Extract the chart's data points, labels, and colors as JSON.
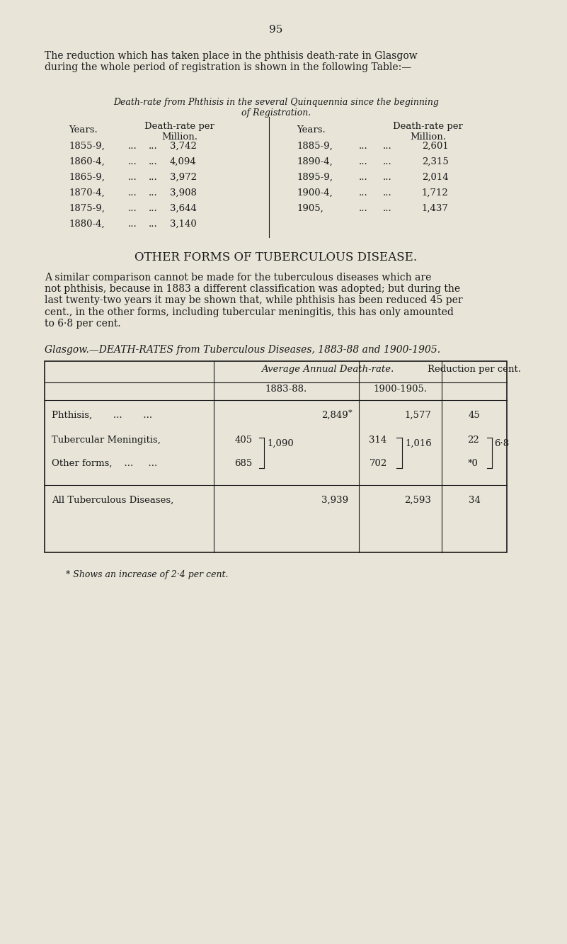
{
  "page_number": "95",
  "bg_color": "#e8e4d8",
  "text_color": "#1a1a1a",
  "intro_text": "The reduction which has taken place in the phthisis death-rate in Glasgow\nduring the whole period of registration is shown in the following Table:—",
  "table1_title_line1": "Death-rate from Phthisis in the several Quinquennia since the beginning",
  "table1_title_line2": "of Registration.",
  "table1_col_header_left": [
    "Years.",
    "Death-rate per\nMillion."
  ],
  "table1_col_header_right": [
    "Years.",
    "Death-rate per\nMillion."
  ],
  "table1_left": [
    [
      "1855-9,",
      "...",
      "...",
      "3,742"
    ],
    [
      "1860-4,",
      "...",
      "...",
      "4,094"
    ],
    [
      "1865-9,",
      "...",
      "...",
      "3,972"
    ],
    [
      "1870-4,",
      "...",
      "...",
      "3,908"
    ],
    [
      "1875-9,",
      "...",
      "...",
      "3,644"
    ],
    [
      "1880-4,",
      "...",
      "...",
      "3,140"
    ]
  ],
  "table1_right": [
    [
      "1885-9,",
      "...",
      "...",
      "2,601"
    ],
    [
      "1890-4,",
      "...",
      "...",
      "2,315"
    ],
    [
      "1895-9,",
      "...",
      "...",
      "2,014"
    ],
    [
      "1900-4,",
      "...",
      "...",
      "1,712"
    ],
    [
      "1905,",
      "...",
      "...",
      "1,437"
    ]
  ],
  "section2_title": "OTHER FORMS OF TUBERCULOUS DISEASE.",
  "section2_body": "A similar comparison cannot be made for the tuberculous diseases which are\nnot phthisis, because in 1883 a different classification was adopted; but during the\nlast twenty-two years it may be shown that, while phthisis has been reduced 45 per\ncent., in the other forms, including tubercular meningitis, this has only amounted\nto 6·8 per cent.",
  "table2_caption": "Glasgow.—DEATH-RATES from Tuberculous Diseases, 1883-88 and 1900-1905.",
  "table2_header1": "Average Annual Death-rate.",
  "table2_header2a": "1883-88.",
  "table2_header2b": "1900-1905.",
  "table2_header3": "Reduction per cent.",
  "table2_rows": [
    {
      "label": "Phthisis,       ...     ...",
      "val1883": "2,849",
      "val1900": "1,577",
      "reduction": "45",
      "bracket1883": null,
      "bracket1900": null,
      "bracket_red": null
    },
    {
      "label": "Tubercular Meningitis,",
      "val1883": "405",
      "val1900": "314",
      "reduction": "22",
      "bracket1883": "1,090",
      "bracket1900": "1,016",
      "bracket_red": "6·8"
    },
    {
      "label": "Other forms,    ...     ...",
      "val1883": "685",
      "val1900": "702",
      "reduction": "*0",
      "bracket1883": null,
      "bracket1900": null,
      "bracket_red": null
    }
  ],
  "table2_total_label": "All Tuberculous Diseases,",
  "table2_total_1883": "3,939",
  "table2_total_1900": "2,593",
  "table2_total_red": "34",
  "table2_footnote": "* Shows an increase of 2·4 per cent."
}
